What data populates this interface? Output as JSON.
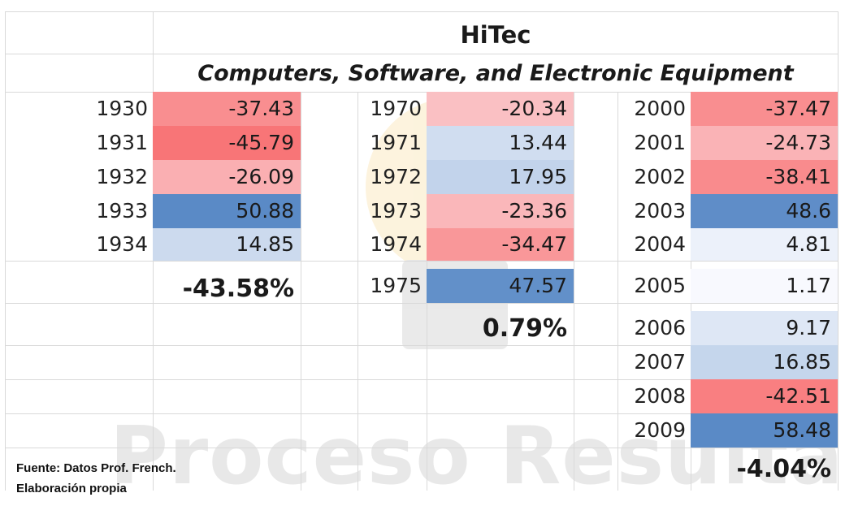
{
  "title": "HiTec",
  "subtitle": "Computers, Software, and Electronic Equipment",
  "watermark": "Proceso Resultado",
  "source_line1": "Fuente: Datos Prof. French.",
  "source_line2": "Elaboración propia",
  "colors": {
    "neg_strong": "#f8696b",
    "pos_strong": "#5a8ac6",
    "neutral": "#fcfcff"
  },
  "chart_data": {
    "type": "table",
    "title": "HiTec",
    "subtitle": "Computers, Software, and Electronic Equipment",
    "blocks": [
      {
        "years": [
          "1930",
          "1931",
          "1932",
          "1933",
          "1934"
        ],
        "values": [
          "-37.43",
          "-45.79",
          "-26.09",
          "50.88",
          "14.85"
        ],
        "summary": "-43.58%"
      },
      {
        "years": [
          "1970",
          "1971",
          "1972",
          "1973",
          "1974",
          "1975"
        ],
        "values": [
          "-20.34",
          "13.44",
          "17.95",
          "-23.36",
          "-34.47",
          "47.57"
        ],
        "summary": "0.79%"
      },
      {
        "years": [
          "2000",
          "2001",
          "2002",
          "2003",
          "2004",
          "2005",
          "2006",
          "2007",
          "2008",
          "2009"
        ],
        "values": [
          "-37.47",
          "-24.73",
          "-38.41",
          "48.6",
          "4.81",
          "1.17",
          "9.17",
          "16.85",
          "-42.51",
          "58.48"
        ],
        "summary": "-4.04%"
      }
    ]
  }
}
